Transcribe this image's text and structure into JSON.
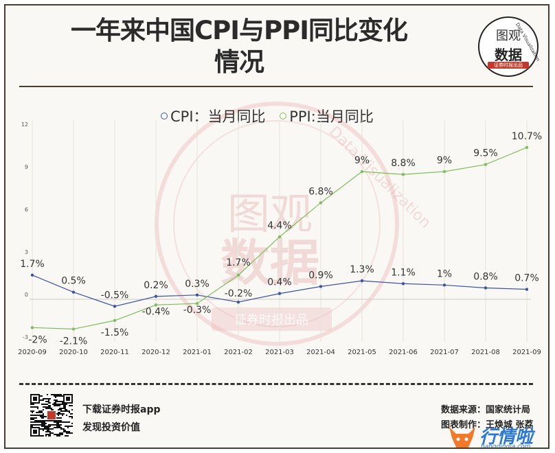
{
  "header": {
    "title_line1": "一年来中国CPI与PPI同比变化",
    "title_line2": "情况"
  },
  "logo": {
    "line1": "图观",
    "line2": "数据",
    "badge": "证券时报出品",
    "arc": "Data Visualization"
  },
  "watermark": {
    "line1": "图观",
    "line2": "数据",
    "arc": "Data Visualization",
    "badge": "证券时报出品"
  },
  "chart_data": {
    "type": "line",
    "categories": [
      "2020-09",
      "2020-10",
      "2020-11",
      "2020-12",
      "2021-01",
      "2021-02",
      "2021-03",
      "2021-04",
      "2021-05",
      "2021-06",
      "2021-07",
      "2021-08",
      "2021-09"
    ],
    "series": [
      {
        "name": "CPI：当月同比",
        "color": "#3b53a8",
        "values": [
          1.7,
          0.5,
          -0.5,
          0.2,
          0.3,
          -0.2,
          0.4,
          0.9,
          1.3,
          1.1,
          1.0,
          0.8,
          0.7
        ],
        "labels": [
          "1.7%",
          "0.5%",
          "-0.5%",
          "0.2%",
          "0.3%",
          "-0.2%",
          "0.4%",
          "0.9%",
          "1.3%",
          "1.1%",
          "1%",
          "0.8%",
          "0.7%"
        ]
      },
      {
        "name": "PPI:当月同比",
        "color": "#7cbf5a",
        "values": [
          -2.0,
          -2.1,
          -1.5,
          -0.4,
          -0.3,
          1.7,
          4.4,
          6.8,
          9.0,
          8.8,
          9.0,
          9.5,
          10.7
        ],
        "labels": [
          "-2%",
          "-2.1%",
          "-1.5%",
          "-0.4%",
          "-0.3%",
          "1.7%",
          "4.4%",
          "6.8%",
          "9%",
          "8.8%",
          "9%",
          "9.5%",
          "10.7%"
        ]
      }
    ],
    "yticks": [
      -3,
      0,
      3,
      6,
      9,
      12
    ],
    "ylim": [
      -3,
      12
    ],
    "grid": "vertical",
    "legend_position": "top-center"
  },
  "footer": {
    "download": "下载证券时报app",
    "slogan": "发现投资价值",
    "source": "数据来源：国家统计局",
    "author": "图表制作：王焕城 张荔",
    "brand_name": "行情啦",
    "brand_url": "hangqingla.com"
  }
}
